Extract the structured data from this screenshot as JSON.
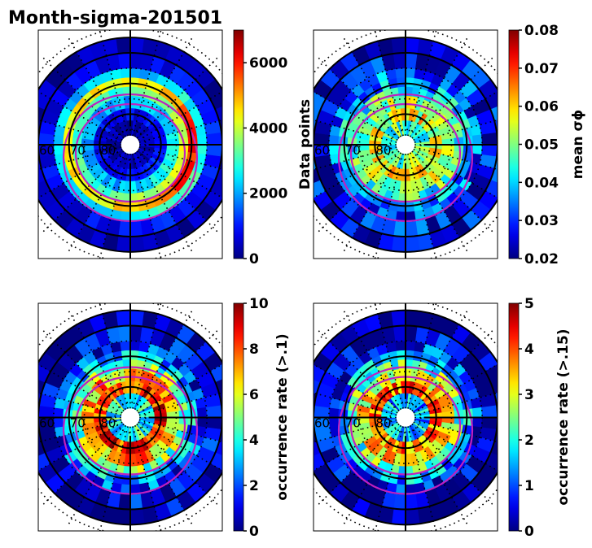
{
  "figure": {
    "title": "Month-sigma-201501"
  },
  "chart_data": [
    {
      "type": "heatmap",
      "projection": "polar (magnetic latitude vs MLT), north pole centered",
      "title": "Month-sigma-201501",
      "panel": "top-left",
      "colormap": "jet",
      "colorbar_label": "Data points",
      "clim": [
        0,
        7000
      ],
      "colorbar_ticks": [
        "0",
        "2000",
        "4000",
        "6000"
      ],
      "colorbar_tick_values": [
        0,
        2000,
        4000,
        6000
      ],
      "lat_circles": [
        60,
        70,
        80
      ],
      "lat_labels": [
        "60",
        "70",
        "80"
      ],
      "oval_boundaries": "magenta (two closed curves)",
      "rings": [
        {
          "lat_from": 87,
          "lat_to": 82,
          "value": 300
        },
        {
          "lat_from": 82,
          "lat_to": 78,
          "value": 900
        },
        {
          "lat_from": 78,
          "lat_to": 74,
          "value": 2400
        },
        {
          "lat_from": 74,
          "lat_to": 71,
          "value": 3600
        },
        {
          "lat_from": 71,
          "lat_to": 68,
          "value": 5200
        },
        {
          "lat_from": 68,
          "lat_to": 65,
          "value": 2600
        },
        {
          "lat_from": 65,
          "lat_to": 60,
          "value": 900
        },
        {
          "lat_from": 60,
          "lat_to": 55,
          "value": 300
        }
      ]
    },
    {
      "type": "heatmap",
      "panel": "top-right",
      "colormap": "jet",
      "colorbar_label": "mean σϕ",
      "clim": [
        0.02,
        0.08
      ],
      "colorbar_ticks": [
        "0.02",
        "0.03",
        "0.04",
        "0.05",
        "0.06",
        "0.07",
        "0.08"
      ],
      "colorbar_tick_values": [
        0.02,
        0.03,
        0.04,
        0.05,
        0.06,
        0.07,
        0.08
      ],
      "lat_circles": [
        60,
        70,
        80
      ],
      "lat_labels": [
        "60",
        "70",
        "80"
      ],
      "rings": [
        {
          "lat_from": 87,
          "lat_to": 82,
          "value": 0.048
        },
        {
          "lat_from": 82,
          "lat_to": 78,
          "value": 0.056
        },
        {
          "lat_from": 78,
          "lat_to": 74,
          "value": 0.052
        },
        {
          "lat_from": 74,
          "lat_to": 71,
          "value": 0.045
        },
        {
          "lat_from": 71,
          "lat_to": 68,
          "value": 0.038
        },
        {
          "lat_from": 68,
          "lat_to": 65,
          "value": 0.032
        },
        {
          "lat_from": 65,
          "lat_to": 60,
          "value": 0.028
        },
        {
          "lat_from": 60,
          "lat_to": 55,
          "value": 0.026
        }
      ]
    },
    {
      "type": "heatmap",
      "panel": "bottom-left",
      "colormap": "jet",
      "colorbar_label": "occurrence rate (>.1)",
      "clim": [
        0,
        10
      ],
      "colorbar_ticks": [
        "0",
        "2",
        "4",
        "6",
        "8",
        "10"
      ],
      "colorbar_tick_values": [
        0,
        2,
        4,
        6,
        8,
        10
      ],
      "lat_circles": [
        60,
        70,
        80
      ],
      "lat_labels": [
        "60",
        "70",
        "80"
      ],
      "rings": [
        {
          "lat_from": 87,
          "lat_to": 82,
          "value": 4
        },
        {
          "lat_from": 82,
          "lat_to": 78,
          "value": 8.5
        },
        {
          "lat_from": 78,
          "lat_to": 74,
          "value": 7
        },
        {
          "lat_from": 74,
          "lat_to": 71,
          "value": 5
        },
        {
          "lat_from": 71,
          "lat_to": 68,
          "value": 3
        },
        {
          "lat_from": 68,
          "lat_to": 65,
          "value": 1.8
        },
        {
          "lat_from": 65,
          "lat_to": 60,
          "value": 0.8
        },
        {
          "lat_from": 60,
          "lat_to": 55,
          "value": 0.3
        }
      ]
    },
    {
      "type": "heatmap",
      "panel": "bottom-right",
      "colormap": "jet",
      "colorbar_label": "occurrence rate (>.15)",
      "clim": [
        0,
        5
      ],
      "colorbar_ticks": [
        "0",
        "1",
        "2",
        "3",
        "4",
        "5"
      ],
      "colorbar_tick_values": [
        0,
        1,
        2,
        3,
        4,
        5
      ],
      "lat_circles": [
        60,
        70,
        80
      ],
      "lat_labels": [
        "60",
        "70",
        "80"
      ],
      "rings": [
        {
          "lat_from": 87,
          "lat_to": 82,
          "value": 1.5
        },
        {
          "lat_from": 82,
          "lat_to": 78,
          "value": 3.8
        },
        {
          "lat_from": 78,
          "lat_to": 74,
          "value": 3.2
        },
        {
          "lat_from": 74,
          "lat_to": 71,
          "value": 2.3
        },
        {
          "lat_from": 71,
          "lat_to": 68,
          "value": 1.4
        },
        {
          "lat_from": 68,
          "lat_to": 65,
          "value": 0.8
        },
        {
          "lat_from": 65,
          "lat_to": 60,
          "value": 0.4
        },
        {
          "lat_from": 60,
          "lat_to": 55,
          "value": 0.15
        }
      ]
    }
  ]
}
